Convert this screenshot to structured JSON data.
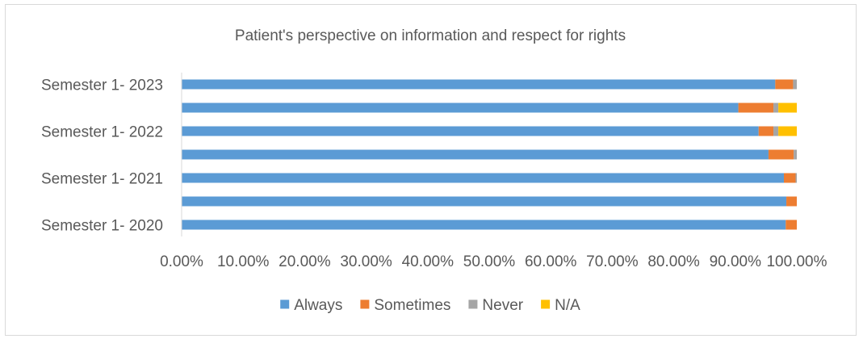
{
  "chart_data": {
    "type": "bar",
    "orientation": "horizontal",
    "stacked": "percent",
    "title": "Patient's perspective on information and respect for rights",
    "categories": [
      "Semester 1- 2023",
      "",
      "Semester 1- 2022",
      "",
      "Semester 1- 2021",
      "",
      "Semester 1- 2020"
    ],
    "series": [
      {
        "name": "Always",
        "color": "#5B9BD5",
        "values": [
          0.965,
          0.905,
          0.938,
          0.954,
          0.979,
          0.983,
          0.982
        ]
      },
      {
        "name": "Sometimes",
        "color": "#ED7D31",
        "values": [
          0.029,
          0.057,
          0.024,
          0.041,
          0.019,
          0.017,
          0.018
        ]
      },
      {
        "name": "Never",
        "color": "#A5A5A5",
        "values": [
          0.006,
          0.008,
          0.008,
          0.005,
          0.002,
          0.0,
          0.0
        ]
      },
      {
        "name": "N/A",
        "color": "#FFC000",
        "values": [
          0.0,
          0.03,
          0.03,
          0.0,
          0.0,
          0.0,
          0.0
        ]
      }
    ],
    "xticks": [
      "0.00%",
      "10.00%",
      "20.00%",
      "30.00%",
      "40.00%",
      "50.00%",
      "60.00%",
      "70.00%",
      "80.00%",
      "90.00%",
      "100.00%"
    ],
    "xlim": [
      0,
      1
    ],
    "legend_position": "bottom",
    "grid": false
  }
}
